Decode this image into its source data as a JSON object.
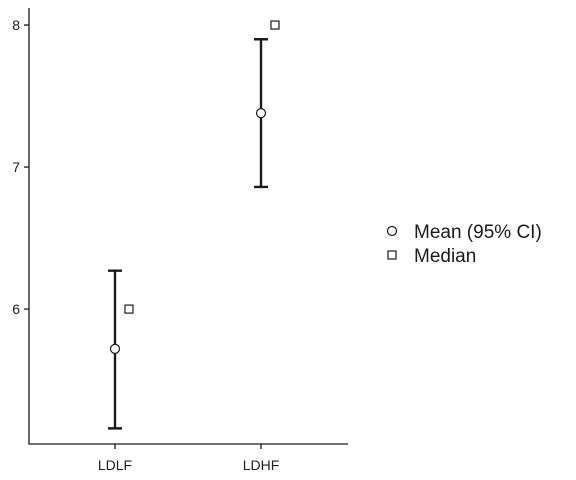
{
  "chart_data": {
    "type": "scatter",
    "categories": [
      "LDLF",
      "LDHF"
    ],
    "series": [
      {
        "name": "Mean (95% CI)",
        "marker": "circle",
        "values": [
          5.72,
          7.38
        ],
        "ci_low": [
          5.16,
          6.86
        ],
        "ci_high": [
          6.27,
          7.9
        ]
      },
      {
        "name": "Median",
        "marker": "square",
        "values": [
          6.0,
          8.0
        ]
      }
    ],
    "yticks": [
      6,
      7,
      8
    ],
    "ylim": [
      5.05,
      8.12
    ],
    "grid": false,
    "legend_position": "right"
  }
}
